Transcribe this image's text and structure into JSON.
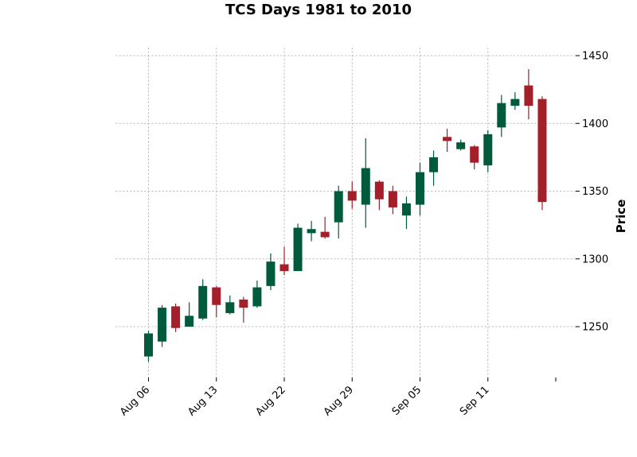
{
  "chart_data": {
    "type": "candlestick",
    "title": "TCS Days 1981 to 2010",
    "xlabel": "",
    "ylabel": "Price",
    "ylim": [
      1212,
      1448
    ],
    "y_ticks": [
      1250,
      1300,
      1350,
      1400,
      1450
    ],
    "x_tick_labels": [
      "Aug 06",
      "Aug 13",
      "Aug 22",
      "Aug 29",
      "Sep 05",
      "Sep 11"
    ],
    "x_tick_index": [
      0,
      5,
      10,
      15,
      20,
      25,
      30
    ],
    "grid": true,
    "colors": {
      "up": "#005a3c",
      "down": "#a31f2a"
    },
    "candles": [
      {
        "open": 1228,
        "high": 1247,
        "low": 1224,
        "close": 1245
      },
      {
        "open": 1239,
        "high": 1266,
        "low": 1235,
        "close": 1264
      },
      {
        "open": 1265,
        "high": 1267,
        "low": 1246,
        "close": 1249
      },
      {
        "open": 1250,
        "high": 1268,
        "low": 1250,
        "close": 1258
      },
      {
        "open": 1256,
        "high": 1285,
        "low": 1255,
        "close": 1280
      },
      {
        "open": 1279,
        "high": 1280,
        "low": 1257,
        "close": 1266
      },
      {
        "open": 1260,
        "high": 1273,
        "low": 1259,
        "close": 1268
      },
      {
        "open": 1270,
        "high": 1272,
        "low": 1253,
        "close": 1264
      },
      {
        "open": 1265,
        "high": 1284,
        "low": 1264,
        "close": 1279
      },
      {
        "open": 1280,
        "high": 1304,
        "low": 1277,
        "close": 1298
      },
      {
        "open": 1296,
        "high": 1309,
        "low": 1288,
        "close": 1291
      },
      {
        "open": 1291,
        "high": 1326,
        "low": 1291,
        "close": 1323
      },
      {
        "open": 1319,
        "high": 1328,
        "low": 1313,
        "close": 1322
      },
      {
        "open": 1320,
        "high": 1331,
        "low": 1315,
        "close": 1316
      },
      {
        "open": 1327,
        "high": 1354,
        "low": 1315,
        "close": 1350
      },
      {
        "open": 1350,
        "high": 1357,
        "low": 1337,
        "close": 1343
      },
      {
        "open": 1340,
        "high": 1389,
        "low": 1323,
        "close": 1367
      },
      {
        "open": 1357,
        "high": 1358,
        "low": 1336,
        "close": 1344
      },
      {
        "open": 1350,
        "high": 1354,
        "low": 1333,
        "close": 1338
      },
      {
        "open": 1332,
        "high": 1346,
        "low": 1322,
        "close": 1341
      },
      {
        "open": 1340,
        "high": 1371,
        "low": 1332,
        "close": 1364
      },
      {
        "open": 1364,
        "high": 1380,
        "low": 1354,
        "close": 1375
      },
      {
        "open": 1390,
        "high": 1396,
        "low": 1379,
        "close": 1387
      },
      {
        "open": 1381,
        "high": 1388,
        "low": 1380,
        "close": 1386
      },
      {
        "open": 1383,
        "high": 1384,
        "low": 1366,
        "close": 1371
      },
      {
        "open": 1369,
        "high": 1395,
        "low": 1364,
        "close": 1392
      },
      {
        "open": 1397,
        "high": 1421,
        "low": 1390,
        "close": 1415
      },
      {
        "open": 1413,
        "high": 1423,
        "low": 1410,
        "close": 1418
      },
      {
        "open": 1428,
        "high": 1440,
        "low": 1403,
        "close": 1413
      },
      {
        "open": 1418,
        "high": 1420,
        "low": 1336,
        "close": 1342
      }
    ]
  }
}
